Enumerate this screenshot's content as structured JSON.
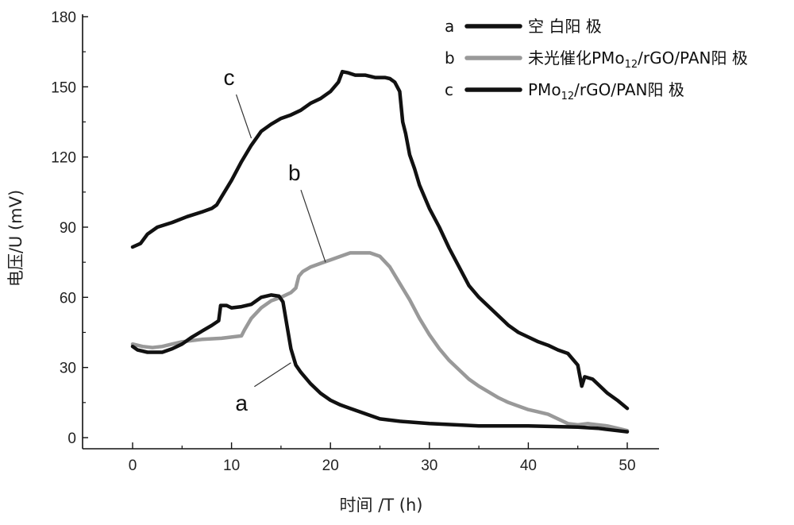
{
  "chart_data": {
    "type": "line",
    "title": "",
    "xlabel": "时间 /T (h)",
    "ylabel": "电压/U (mV)",
    "xlim": [
      -5,
      53
    ],
    "ylim": [
      0,
      180
    ],
    "xticks": [
      0,
      10,
      20,
      30,
      40,
      50
    ],
    "yticks": [
      0,
      30,
      60,
      90,
      120,
      150,
      180
    ],
    "legend_position": "top-right",
    "series": [
      {
        "key": "a",
        "letter": "a",
        "name": "空 白阳 极",
        "color": "#111111",
        "points": [
          [
            0,
            39
          ],
          [
            0.5,
            37.5
          ],
          [
            1.5,
            36.5
          ],
          [
            3,
            36.5
          ],
          [
            4,
            38
          ],
          [
            5,
            40
          ],
          [
            6,
            43
          ],
          [
            7,
            45.5
          ],
          [
            8,
            48
          ],
          [
            8.7,
            50
          ],
          [
            8.9,
            56.5
          ],
          [
            9.5,
            56.5
          ],
          [
            10,
            55.5
          ],
          [
            11,
            56
          ],
          [
            12,
            57
          ],
          [
            13,
            60
          ],
          [
            14,
            61
          ],
          [
            14.8,
            60.5
          ],
          [
            15.2,
            58
          ],
          [
            15.6,
            48
          ],
          [
            16,
            38
          ],
          [
            16.5,
            31
          ],
          [
            17,
            28
          ],
          [
            18,
            23
          ],
          [
            19,
            19
          ],
          [
            20,
            16
          ],
          [
            21,
            14
          ],
          [
            22,
            12.5
          ],
          [
            23,
            11
          ],
          [
            24,
            9.5
          ],
          [
            25,
            8
          ],
          [
            27,
            7
          ],
          [
            30,
            6
          ],
          [
            35,
            5
          ],
          [
            40,
            5
          ],
          [
            45,
            4.5
          ],
          [
            47,
            4
          ],
          [
            49,
            3
          ],
          [
            50,
            2.5
          ]
        ]
      },
      {
        "key": "b",
        "letter": "b",
        "name": "未光催化PMo12/rGO/PAN阳 极",
        "name_main": "未光催化PMo",
        "name_sub": "12",
        "name_rest": "/rGO/PAN阳 极",
        "color": "#999999",
        "points": [
          [
            0,
            40
          ],
          [
            1,
            39
          ],
          [
            2,
            38.5
          ],
          [
            3,
            39
          ],
          [
            4,
            40
          ],
          [
            5,
            41
          ],
          [
            7,
            42
          ],
          [
            9,
            42.5
          ],
          [
            10,
            43
          ],
          [
            11,
            43.5
          ],
          [
            11.3,
            46
          ],
          [
            12,
            51
          ],
          [
            13,
            55.5
          ],
          [
            14,
            58.5
          ],
          [
            15,
            60
          ],
          [
            16,
            62
          ],
          [
            16.5,
            64
          ],
          [
            16.8,
            69
          ],
          [
            17.2,
            71
          ],
          [
            18,
            73
          ],
          [
            19,
            74.5
          ],
          [
            20,
            76
          ],
          [
            21,
            77.5
          ],
          [
            22,
            79
          ],
          [
            24,
            79
          ],
          [
            25,
            77.5
          ],
          [
            26,
            73
          ],
          [
            27,
            66
          ],
          [
            28,
            59
          ],
          [
            29,
            51
          ],
          [
            30,
            44
          ],
          [
            31,
            38
          ],
          [
            32,
            33
          ],
          [
            33,
            29
          ],
          [
            34,
            25
          ],
          [
            35,
            22
          ],
          [
            36,
            19.5
          ],
          [
            37,
            17
          ],
          [
            38,
            15
          ],
          [
            39,
            13.5
          ],
          [
            40,
            12
          ],
          [
            41,
            11
          ],
          [
            42,
            10
          ],
          [
            43,
            8
          ],
          [
            44,
            6
          ],
          [
            45,
            5.5
          ],
          [
            46,
            6
          ],
          [
            47,
            5.5
          ],
          [
            48,
            5
          ],
          [
            49,
            4
          ],
          [
            50,
            3
          ]
        ]
      },
      {
        "key": "c",
        "letter": "c",
        "name": "PMo12/rGO/PAN阳 极",
        "name_main": "PMo",
        "name_sub": "12",
        "name_rest": "/rGO/PAN阳 极",
        "color": "#111111",
        "points": [
          [
            0,
            81.5
          ],
          [
            0.8,
            83
          ],
          [
            1.5,
            87
          ],
          [
            2.5,
            90
          ],
          [
            4,
            92
          ],
          [
            5.5,
            94.5
          ],
          [
            7,
            96.5
          ],
          [
            8,
            98
          ],
          [
            8.5,
            99.5
          ],
          [
            9,
            103
          ],
          [
            10,
            110
          ],
          [
            11,
            118
          ],
          [
            12,
            125
          ],
          [
            13,
            131
          ],
          [
            14,
            134
          ],
          [
            15,
            136.5
          ],
          [
            16,
            138
          ],
          [
            17,
            140
          ],
          [
            18,
            143
          ],
          [
            19,
            145
          ],
          [
            20,
            148
          ],
          [
            20.8,
            152
          ],
          [
            21.2,
            156.5
          ],
          [
            21.8,
            156
          ],
          [
            22.5,
            155
          ],
          [
            23.5,
            155
          ],
          [
            24.5,
            154
          ],
          [
            25.5,
            154
          ],
          [
            26,
            153.5
          ],
          [
            26.5,
            152
          ],
          [
            27,
            148
          ],
          [
            27.3,
            135
          ],
          [
            27.6,
            130
          ],
          [
            28,
            121
          ],
          [
            28.5,
            115
          ],
          [
            29,
            108
          ],
          [
            30,
            98
          ],
          [
            31,
            90
          ],
          [
            32,
            81
          ],
          [
            33,
            73
          ],
          [
            34,
            65
          ],
          [
            35,
            60
          ],
          [
            36,
            56
          ],
          [
            37,
            52
          ],
          [
            38,
            48
          ],
          [
            39,
            45
          ],
          [
            40,
            43
          ],
          [
            41,
            41
          ],
          [
            42,
            39.5
          ],
          [
            43,
            37.5
          ],
          [
            44,
            36
          ],
          [
            45,
            31
          ],
          [
            45.4,
            22
          ],
          [
            45.7,
            26
          ],
          [
            46.5,
            25
          ],
          [
            47,
            23
          ],
          [
            48,
            19
          ],
          [
            49,
            16
          ],
          [
            50,
            12.5
          ]
        ]
      }
    ],
    "annotations": [
      {
        "text": "c",
        "series": "c",
        "at_x": 12,
        "at_y": 128
      },
      {
        "text": "b",
        "series": "b",
        "at_x": 19.5,
        "at_y": 75
      },
      {
        "text": "a",
        "series": "a",
        "at_x": 16,
        "at_y": 32
      }
    ]
  }
}
